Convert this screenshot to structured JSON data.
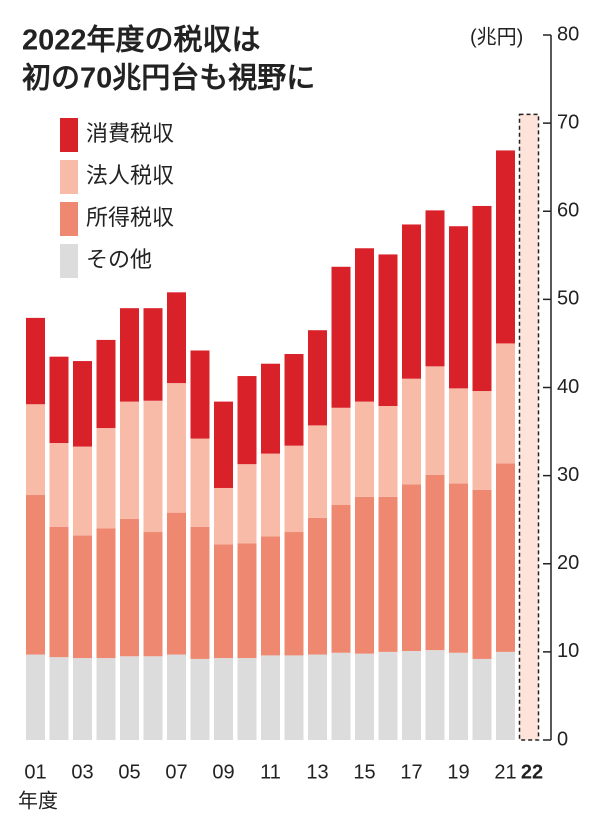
{
  "chart_data": {
    "type": "stacked_bar",
    "title": [
      "2022年度の税収は",
      "初の70兆円台も視野に"
    ],
    "y_unit": "(兆円)",
    "x_label": "年度",
    "categories": [
      "01",
      null,
      "03",
      null,
      "05",
      null,
      "07",
      null,
      "09",
      null,
      "11",
      null,
      "13",
      null,
      "15",
      null,
      "17",
      null,
      "19",
      null,
      "21",
      "22"
    ],
    "series": [
      {
        "name": "消費税収",
        "color": "#d9212a",
        "values": [
          9.8,
          9.8,
          9.7,
          10.0,
          10.6,
          10.5,
          10.3,
          10.0,
          9.8,
          10.0,
          10.2,
          10.4,
          10.8,
          16.0,
          17.4,
          17.2,
          17.5,
          17.7,
          18.4,
          21.0,
          21.9,
          null
        ]
      },
      {
        "name": "法人税収",
        "color": "#f7bba8",
        "values": [
          10.3,
          9.5,
          10.1,
          11.4,
          13.3,
          14.9,
          14.7,
          10.0,
          6.4,
          9.0,
          9.4,
          9.8,
          10.5,
          11.0,
          10.8,
          10.3,
          12.0,
          12.3,
          10.8,
          11.2,
          13.6,
          null
        ]
      },
      {
        "name": "所得税収",
        "color": "#ef8870",
        "values": [
          18.1,
          14.8,
          13.9,
          14.7,
          15.6,
          14.1,
          16.1,
          15.0,
          12.9,
          13.0,
          13.5,
          14.0,
          15.5,
          16.8,
          17.8,
          17.6,
          18.9,
          19.9,
          19.2,
          19.2,
          21.4,
          null
        ]
      },
      {
        "name": "その他",
        "color": "#dcdcdc",
        "values": [
          9.7,
          9.4,
          9.3,
          9.3,
          9.5,
          9.5,
          9.7,
          9.2,
          9.3,
          9.3,
          9.6,
          9.6,
          9.7,
          9.9,
          9.8,
          10.0,
          10.1,
          10.2,
          9.9,
          9.2,
          10.0,
          null
        ]
      }
    ],
    "projection": 71,
    "ylim": [
      0,
      80
    ],
    "yticks": [
      0,
      10,
      20,
      30,
      40,
      50,
      60,
      70,
      80
    ]
  }
}
